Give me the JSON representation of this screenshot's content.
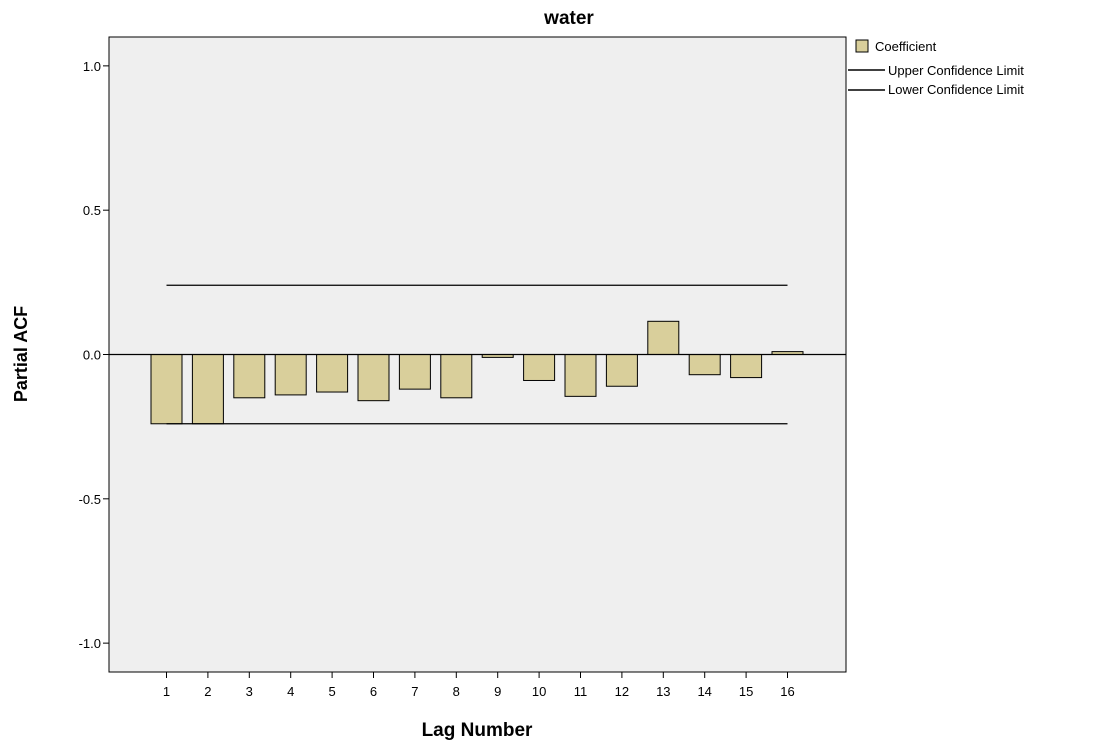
{
  "chart_data": {
    "type": "bar",
    "title": "water",
    "xlabel": "Lag Number",
    "ylabel": "Partial ACF",
    "ylim": [
      -1.1,
      1.1
    ],
    "yticks": [
      1.0,
      0.5,
      0.0,
      -0.5,
      -1.0
    ],
    "ytick_labels": [
      "1.0",
      "0.5",
      "0.0",
      "-0.5",
      "-1.0"
    ],
    "categories": [
      "1",
      "2",
      "3",
      "4",
      "5",
      "6",
      "7",
      "8",
      "9",
      "10",
      "11",
      "12",
      "13",
      "14",
      "15",
      "16"
    ],
    "series": [
      {
        "name": "Coefficient",
        "color": "#d9cf9b",
        "values": [
          -0.24,
          -0.24,
          -0.15,
          -0.14,
          -0.13,
          -0.16,
          -0.12,
          -0.15,
          -0.01,
          -0.09,
          -0.145,
          -0.11,
          0.115,
          -0.07,
          -0.08,
          0.01
        ]
      }
    ],
    "confidence_limits": {
      "upper": {
        "name": "Upper Confidence Limit",
        "value": 0.24
      },
      "lower": {
        "name": "Lower Confidence Limit",
        "value": -0.24
      }
    },
    "legend_position": "top-right",
    "grid": false,
    "plot_background": "#efefef"
  }
}
